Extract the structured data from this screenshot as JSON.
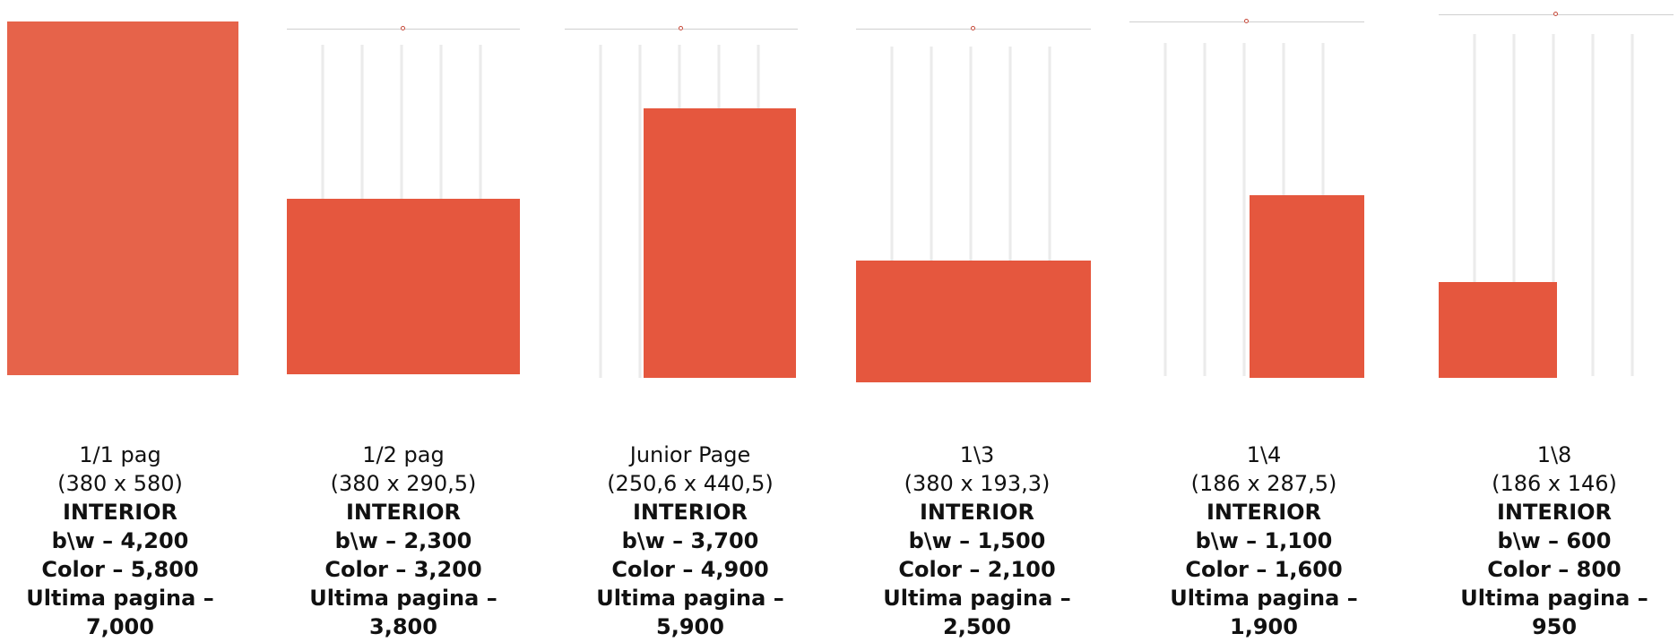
{
  "brand": {
    "accent": "#e5573e"
  },
  "layouts": [
    {
      "name": "1/1 pag",
      "dims": "(380 x 580)",
      "section": "INTERIOR",
      "bw": "b\\w – 4,200",
      "color": "Color – 5,800",
      "last_page": "Ultima pagina –",
      "last_page_price": "7,000"
    },
    {
      "name": "1/2 pag",
      "dims": "(380 x 290,5)",
      "section": "INTERIOR",
      "bw": "b\\w – 2,300",
      "color": "Color – 3,200",
      "last_page": "Ultima pagina –",
      "last_page_price": "3,800"
    },
    {
      "name": "Junior Page",
      "dims": "(250,6 x 440,5)",
      "section": "INTERIOR",
      "bw": "b\\w – 3,700",
      "color": "Color – 4,900",
      "last_page": "Ultima pagina –",
      "last_page_price": "5,900"
    },
    {
      "name": "1\\3",
      "dims": "(380 x 193,3)",
      "section": "INTERIOR",
      "bw": "b\\w – 1,500",
      "color": "Color – 2,100",
      "last_page": "Ultima pagina –",
      "last_page_price": "2,500"
    },
    {
      "name": "1\\4",
      "dims": "(186 x 287,5)",
      "section": "INTERIOR",
      "bw": "b\\w – 1,100",
      "color": "Color – 1,600",
      "last_page": "Ultima pagina –",
      "last_page_price": "1,900"
    },
    {
      "name": "1\\8",
      "dims": "(186 x 146)",
      "section": "INTERIOR",
      "bw": "b\\w – 600",
      "color": "Color – 800",
      "last_page": "Ultima pagina –",
      "last_page_price": "950"
    }
  ]
}
